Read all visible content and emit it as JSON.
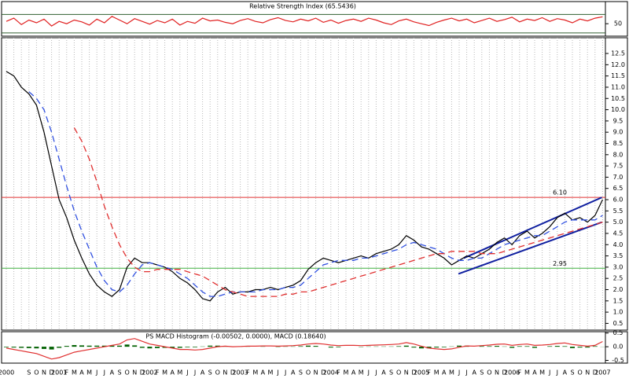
{
  "chart_data": [
    {
      "type": "line",
      "title": "Relative Strength Index (65.5436)",
      "ylim": [
        23,
        98
      ],
      "yticks": [
        50
      ],
      "hlines": [
        {
          "value": 70,
          "color": "#306030"
        },
        {
          "value": 30,
          "color": "#306030"
        }
      ],
      "series": [
        {
          "name": "RSI",
          "color": "#e02020",
          "dashed": false,
          "values": [
            55,
            62,
            48,
            58,
            52,
            60,
            45,
            55,
            50,
            58,
            54,
            47,
            60,
            52,
            66,
            58,
            50,
            61,
            55,
            49,
            57,
            52,
            60,
            47,
            55,
            51,
            62,
            56,
            58,
            53,
            50,
            57,
            61,
            55,
            52,
            59,
            63,
            57,
            54,
            60,
            56,
            62,
            53,
            58,
            51,
            57,
            60,
            55,
            62,
            58,
            52,
            48,
            56,
            60,
            54,
            50,
            46,
            53,
            58,
            62,
            56,
            60,
            52,
            57,
            62,
            55,
            59,
            64,
            54,
            60,
            57,
            63,
            55,
            61,
            58,
            52,
            60,
            56,
            62,
            65
          ]
        }
      ]
    },
    {
      "type": "line",
      "grid": true,
      "ylim": [
        0.2,
        13.2
      ],
      "yticks": [
        0.5,
        {
          "value": 1,
          "label": "1.0"
        },
        1.5,
        {
          "value": 2,
          "label": "2.0"
        },
        2.5,
        {
          "value": 3,
          "label": "3.0"
        },
        3.5,
        {
          "value": 4,
          "label": "4.0"
        },
        4.5,
        {
          "value": 5,
          "label": "5.0"
        },
        5.5,
        {
          "value": 6,
          "label": "6.0"
        },
        6.5,
        {
          "value": 7,
          "label": "7.0"
        },
        7.5,
        {
          "value": 8,
          "label": "8.0"
        },
        8.5,
        {
          "value": 9,
          "label": "9.0"
        },
        9.5,
        {
          "value": 10,
          "label": "10.0"
        },
        10.5,
        {
          "value": 11,
          "label": "11.0"
        },
        11.5,
        {
          "value": 12,
          "label": "12.0"
        },
        12.5
      ],
      "hlines": [
        {
          "value": 6.1,
          "label": "6.10",
          "color": "#e03030"
        },
        {
          "value": 2.95,
          "label": "2.95",
          "color": "#40b040"
        }
      ],
      "trendline_color": "#1020a0",
      "trendlines": [
        {
          "from": [
            60.6,
            3.4
          ],
          "to": [
            78.9,
            6.1
          ]
        },
        {
          "from": [
            59.9,
            2.7
          ],
          "to": [
            78.9,
            5.0
          ]
        }
      ],
      "series": [
        {
          "name": "Price",
          "color": "#000000",
          "dashed": false,
          "values": [
            11.7,
            11.5,
            11.0,
            10.7,
            10.2,
            9.0,
            7.5,
            6.0,
            5.2,
            4.2,
            3.4,
            2.7,
            2.2,
            1.9,
            1.7,
            2.0,
            3.0,
            3.4,
            3.2,
            3.2,
            3.1,
            3.0,
            2.8,
            2.5,
            2.3,
            2.0,
            1.6,
            1.5,
            1.9,
            2.1,
            1.8,
            1.9,
            1.9,
            2.0,
            2.0,
            2.1,
            2.0,
            2.1,
            2.2,
            2.4,
            2.9,
            3.2,
            3.4,
            3.3,
            3.2,
            3.3,
            3.4,
            3.5,
            3.4,
            3.6,
            3.7,
            3.8,
            4.0,
            4.4,
            4.2,
            3.9,
            3.8,
            3.6,
            3.4,
            3.1,
            3.3,
            3.5,
            3.4,
            3.6,
            3.8,
            4.1,
            4.3,
            4.0,
            4.4,
            4.6,
            4.3,
            4.5,
            4.8,
            5.2,
            5.4,
            5.1,
            5.2,
            5.0,
            5.3,
            6.0
          ]
        },
        {
          "name": "Short MA",
          "color": "#3050e0",
          "dashed": true,
          "values": [
            null,
            null,
            null,
            10.8,
            10.5,
            10.0,
            9.0,
            7.8,
            6.6,
            5.5,
            4.6,
            3.8,
            3.0,
            2.4,
            2.0,
            1.9,
            2.2,
            2.7,
            3.1,
            3.2,
            3.1,
            3.0,
            2.9,
            2.7,
            2.5,
            2.2,
            1.9,
            1.7,
            1.7,
            1.8,
            1.9,
            1.9,
            1.9,
            1.9,
            2.0,
            2.0,
            2.0,
            2.1,
            2.1,
            2.2,
            2.5,
            2.8,
            3.1,
            3.2,
            3.3,
            3.3,
            3.3,
            3.4,
            3.4,
            3.5,
            3.6,
            3.7,
            3.8,
            4.0,
            4.1,
            4.0,
            3.9,
            3.8,
            3.6,
            3.4,
            3.3,
            3.3,
            3.4,
            3.4,
            3.6,
            3.8,
            4.0,
            4.1,
            4.2,
            4.3,
            4.4,
            4.4,
            4.6,
            4.8,
            5.0,
            5.1,
            5.1,
            5.1,
            5.1,
            5.3
          ]
        },
        {
          "name": "Long MA",
          "color": "#e03030",
          "dashed": true,
          "values": [
            null,
            null,
            null,
            null,
            null,
            null,
            null,
            null,
            null,
            9.2,
            8.6,
            7.8,
            6.8,
            5.7,
            4.8,
            4.0,
            3.4,
            3.0,
            2.8,
            2.8,
            2.9,
            2.9,
            2.9,
            2.9,
            2.8,
            2.7,
            2.6,
            2.4,
            2.2,
            2.0,
            1.9,
            1.8,
            1.7,
            1.7,
            1.7,
            1.7,
            1.7,
            1.8,
            1.8,
            1.9,
            1.9,
            2.0,
            2.1,
            2.2,
            2.3,
            2.4,
            2.5,
            2.6,
            2.7,
            2.8,
            2.9,
            3.0,
            3.1,
            3.2,
            3.3,
            3.4,
            3.5,
            3.6,
            3.6,
            3.7,
            3.7,
            3.7,
            3.7,
            3.6,
            3.6,
            3.6,
            3.7,
            3.8,
            3.9,
            4.0,
            4.1,
            4.2,
            4.3,
            4.4,
            4.5,
            4.6,
            4.7,
            4.8,
            4.9,
            5.0
          ]
        }
      ]
    },
    {
      "type": "combo",
      "title": "PS MACD Histogram (-0.00502, 0.0000), MACD (0.18640)",
      "ylim": [
        -0.6,
        0.55
      ],
      "yticks": [
        0.5,
        {
          "value": 0,
          "label": "0.0"
        },
        -0.5
      ],
      "categories": [
        "2000",
        null,
        null,
        "S",
        "O",
        "N",
        "D",
        "2001",
        "F",
        "M",
        "A",
        "M",
        "J",
        "J",
        "A",
        "S",
        "O",
        "N",
        "D",
        "2002",
        "F",
        "M",
        "A",
        "M",
        "J",
        "J",
        "A",
        "S",
        "O",
        "N",
        "D",
        "2003",
        "F",
        "M",
        "A",
        "M",
        "J",
        "J",
        "A",
        "S",
        "O",
        "N",
        "D",
        "2004",
        "F",
        "M",
        "A",
        "M",
        "J",
        "J",
        "A",
        "S",
        "O",
        "N",
        "D",
        "2005",
        "F",
        "M",
        "A",
        "M",
        "J",
        "J",
        "A",
        "S",
        "O",
        "N",
        "D",
        "2006",
        "F",
        "M",
        "A",
        "M",
        "J",
        "J",
        "A",
        "S",
        "O",
        "N",
        "D",
        "2007"
      ],
      "series": [
        {
          "name": "Histogram",
          "type": "bar",
          "color": "#006000",
          "values": [
            -0.02,
            -0.03,
            -0.04,
            -0.05,
            -0.06,
            -0.08,
            -0.1,
            -0.04,
            0.03,
            0.06,
            0.05,
            0.04,
            0.04,
            0.04,
            0.04,
            0.04,
            0.08,
            0.05,
            -0.04,
            -0.06,
            -0.05,
            -0.04,
            -0.04,
            -0.04,
            -0.02,
            -0.02,
            0.01,
            0.04,
            0.04,
            0.03,
            0.0,
            0.01,
            0.01,
            0.0,
            0.01,
            0.0,
            -0.01,
            0.01,
            0.01,
            0.02,
            0.04,
            0.03,
            0.0,
            -0.03,
            -0.02,
            0.0,
            0.0,
            -0.01,
            0.01,
            0.01,
            0.01,
            0.01,
            0.02,
            0.04,
            -0.03,
            -0.06,
            -0.06,
            -0.03,
            -0.02,
            0.01,
            0.04,
            0.04,
            0.0,
            0.02,
            0.02,
            0.03,
            0.01,
            -0.04,
            0.02,
            0.02,
            -0.04,
            0.0,
            0.02,
            0.03,
            0.02,
            -0.05,
            -0.03,
            -0.03,
            0.02,
            -0.005
          ]
        },
        {
          "name": "MACD",
          "type": "line",
          "color": "#e03030",
          "values": [
            -0.05,
            -0.1,
            -0.15,
            -0.2,
            -0.25,
            -0.35,
            -0.45,
            -0.4,
            -0.3,
            -0.2,
            -0.15,
            -0.1,
            -0.05,
            0.0,
            0.05,
            0.1,
            0.25,
            0.3,
            0.2,
            0.1,
            0.05,
            0.0,
            -0.05,
            -0.1,
            -0.1,
            -0.12,
            -0.1,
            -0.05,
            0.0,
            0.02,
            0.0,
            0.01,
            0.02,
            0.02,
            0.03,
            0.03,
            0.02,
            0.03,
            0.04,
            0.06,
            0.1,
            0.12,
            0.1,
            0.06,
            0.04,
            0.05,
            0.05,
            0.04,
            0.05,
            0.06,
            0.07,
            0.08,
            0.1,
            0.15,
            0.1,
            0.02,
            -0.05,
            -0.08,
            -0.1,
            -0.08,
            -0.02,
            0.03,
            0.02,
            0.04,
            0.06,
            0.09,
            0.1,
            0.05,
            0.08,
            0.1,
            0.05,
            0.06,
            0.08,
            0.12,
            0.14,
            0.08,
            0.05,
            0.02,
            0.05,
            0.19
          ]
        }
      ]
    }
  ]
}
